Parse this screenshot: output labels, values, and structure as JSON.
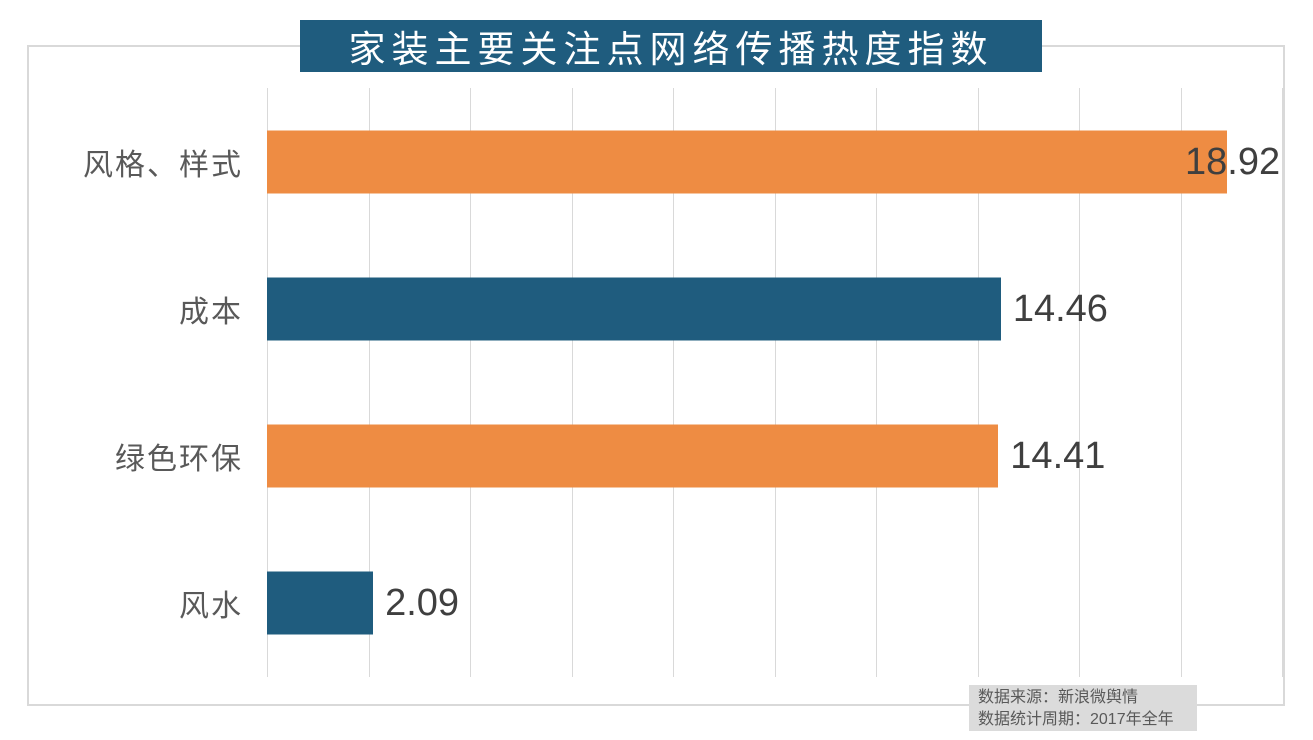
{
  "title": "家装主要关注点网络传播热度指数",
  "chart_data": {
    "type": "bar",
    "orientation": "horizontal",
    "title": "家装主要关注点网络传播热度指数",
    "categories": [
      "风格、样式",
      "成本",
      "绿色环保",
      "风水"
    ],
    "values": [
      18.92,
      14.46,
      14.41,
      2.09
    ],
    "value_labels": [
      "18.92",
      "14.46",
      "14.41",
      "2.09"
    ],
    "bar_colors": [
      "#EE8C43",
      "#1F5C7E",
      "#EE8C43",
      "#1F5C7E"
    ],
    "xlim": [
      0,
      20
    ],
    "gridline_interval": 2,
    "grid": true,
    "legend": false,
    "xlabel": "",
    "ylabel": ""
  },
  "colors": {
    "orange": "#EE8C43",
    "teal": "#1F5C7E",
    "title_bg": "#1F5C7E",
    "title_text": "#FFFFFF",
    "gridline": "#D9D9D9",
    "frame_border": "#D9D9D9",
    "category_label": "#595959",
    "value_label": "#3F3F3F",
    "footer_bg": "#DBDBDB",
    "footer_text": "#595959"
  },
  "footer": {
    "source": "数据来源：新浪微舆情",
    "period": "数据统计周期：2017年全年"
  }
}
